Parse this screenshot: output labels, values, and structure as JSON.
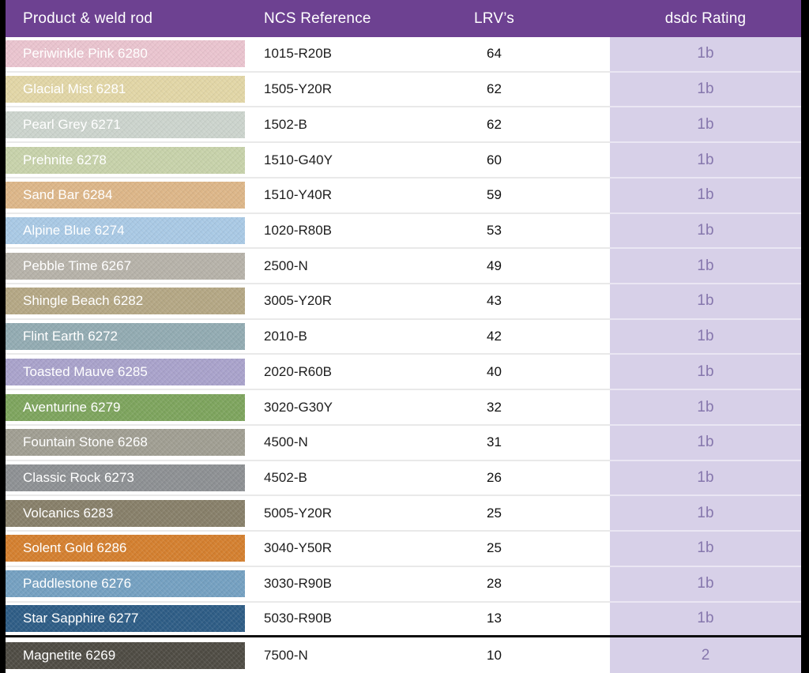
{
  "colors": {
    "frame_bg": "#000000",
    "header_bg": "#6d4191",
    "header_text": "#ffffff",
    "row_bg": "#ffffff",
    "rating_col_bg": "#d7d0e8",
    "rating_text": "#8677ad",
    "divider": "#0d0d0d"
  },
  "chart_data": {
    "type": "table",
    "columns": [
      "Product & weld rod",
      "NCS Reference",
      "LRV’s",
      "dsdc Rating"
    ],
    "rows": [
      {
        "product": "Periwinkle Pink 6280",
        "swatch": "#eac4cf",
        "ncs": "1015-R20B",
        "lrv": "64",
        "rating": "1b"
      },
      {
        "product": "Glacial Mist 6281",
        "swatch": "#e2d6a6",
        "ncs": "1505-Y20R",
        "lrv": "62",
        "rating": "1b"
      },
      {
        "product": "Pearl Grey 6271",
        "swatch": "#ccd4cd",
        "ncs": "1502-B",
        "lrv": "62",
        "rating": "1b"
      },
      {
        "product": "Prehnite 6278",
        "swatch": "#c7d2aa",
        "ncs": "1510-G40Y",
        "lrv": "60",
        "rating": "1b"
      },
      {
        "product": "Sand Bar 6284",
        "swatch": "#ddb688",
        "ncs": "1510-Y40R",
        "lrv": "59",
        "rating": "1b"
      },
      {
        "product": "Alpine Blue 6274",
        "swatch": "#a9c9e5",
        "ncs": "1020-R80B",
        "lrv": "53",
        "rating": "1b"
      },
      {
        "product": "Pebble Time 6267",
        "swatch": "#b6b2a9",
        "ncs": "2500-N",
        "lrv": "49",
        "rating": "1b"
      },
      {
        "product": "Shingle Beach 6282",
        "swatch": "#b4a784",
        "ncs": "3005-Y20R",
        "lrv": "43",
        "rating": "1b"
      },
      {
        "product": "Flint Earth 6272",
        "swatch": "#92abb2",
        "ncs": "2010-B",
        "lrv": "42",
        "rating": "1b"
      },
      {
        "product": "Toasted Mauve 6285",
        "swatch": "#a9a2cb",
        "ncs": "2020-R60B",
        "lrv": "40",
        "rating": "1b"
      },
      {
        "product": "Aventurine 6279",
        "swatch": "#7da45d",
        "ncs": "3020-G30Y",
        "lrv": "32",
        "rating": "1b"
      },
      {
        "product": "Fountain Stone 6268",
        "swatch": "#a09e92",
        "ncs": "4500-N",
        "lrv": "31",
        "rating": "1b"
      },
      {
        "product": "Classic Rock 6273",
        "swatch": "#8d9093",
        "ncs": "4502-B",
        "lrv": "26",
        "rating": "1b"
      },
      {
        "product": "Volcanics 6283",
        "swatch": "#877f69",
        "ncs": "5005-Y20R",
        "lrv": "25",
        "rating": "1b"
      },
      {
        "product": "Solent Gold 6286",
        "swatch": "#d47f2e",
        "ncs": "3040-Y50R",
        "lrv": "25",
        "rating": "1b"
      },
      {
        "product": "Paddlestone 6276",
        "swatch": "#74a0c1",
        "ncs": "3030-R90B",
        "lrv": "28",
        "rating": "1b"
      },
      {
        "product": "Star Sapphire 6277",
        "swatch": "#2d5c85",
        "ncs": "5030-R90B",
        "lrv": "13",
        "rating": "1b"
      },
      {
        "product": "Magnetite 6269",
        "swatch": "#4e4b43",
        "ncs": "7500-N",
        "lrv": "10",
        "rating": "2",
        "divider_above": true
      }
    ]
  }
}
